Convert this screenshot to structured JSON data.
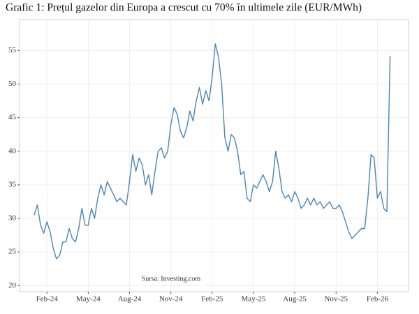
{
  "chart_data": {
    "type": "line",
    "title": "Grafic 1: Prețul gazelor din Europa a crescut cu 70% în ultimele zile (EUR/MWh)",
    "annotation": "Sursa: Investing.com",
    "categories": [
      null,
      null,
      null,
      null,
      "Feb-24",
      null,
      null,
      null,
      null,
      null,
      null,
      null,
      null,
      null,
      null,
      null,
      null,
      "May-24",
      null,
      null,
      null,
      null,
      null,
      null,
      null,
      null,
      null,
      null,
      null,
      null,
      "Aug-24",
      null,
      null,
      null,
      null,
      null,
      null,
      null,
      null,
      null,
      null,
      null,
      null,
      "Nov-24",
      null,
      null,
      null,
      null,
      null,
      null,
      null,
      null,
      null,
      null,
      null,
      null,
      "Feb-25",
      null,
      null,
      null,
      null,
      null,
      null,
      null,
      null,
      null,
      null,
      null,
      null,
      "May-25",
      null,
      null,
      null,
      null,
      null,
      null,
      null,
      null,
      null,
      null,
      null,
      null,
      "Aug-25",
      null,
      null,
      null,
      null,
      null,
      null,
      null,
      null,
      null,
      null,
      null,
      null,
      "Nov-25",
      null,
      null,
      null,
      null,
      null,
      null,
      null,
      null,
      null,
      null,
      null,
      null,
      "Feb-26",
      null,
      null,
      null,
      null
    ],
    "values": [
      30.5,
      32,
      29,
      27.8,
      29.5,
      28,
      25.5,
      24,
      24.5,
      26.5,
      26.5,
      28.5,
      27,
      26.5,
      28.5,
      31.5,
      29,
      29,
      31.5,
      30,
      33,
      35,
      33.5,
      35.5,
      34.5,
      33.5,
      32.5,
      33,
      32.5,
      32,
      35.5,
      39.5,
      37,
      39,
      38,
      35,
      36.5,
      33.5,
      37,
      40,
      40.5,
      39,
      40,
      44,
      46.5,
      45.5,
      43,
      42,
      43.5,
      46,
      44.5,
      47.5,
      49.5,
      47,
      49,
      47.5,
      51,
      56,
      54,
      50,
      42,
      40,
      42.5,
      42,
      40,
      36.5,
      37,
      33,
      32.5,
      35,
      34.5,
      35.5,
      36.5,
      35.5,
      34,
      35.5,
      40,
      37.5,
      34,
      33,
      33.5,
      32.5,
      34,
      33,
      31.5,
      32,
      33,
      32,
      33,
      32,
      32.5,
      31.5,
      32,
      32.5,
      31.5,
      31.5,
      32,
      31,
      29.5,
      28,
      27,
      27.5,
      28,
      28.5,
      28.5,
      33,
      39.5,
      39,
      33,
      34,
      31.5,
      31,
      54.2
    ],
    "color": "#4a86b5",
    "ylim": [
      19.1,
      59.6
    ],
    "yticks": [
      20,
      25,
      30,
      35,
      40,
      45,
      50,
      55
    ],
    "grid": true
  }
}
